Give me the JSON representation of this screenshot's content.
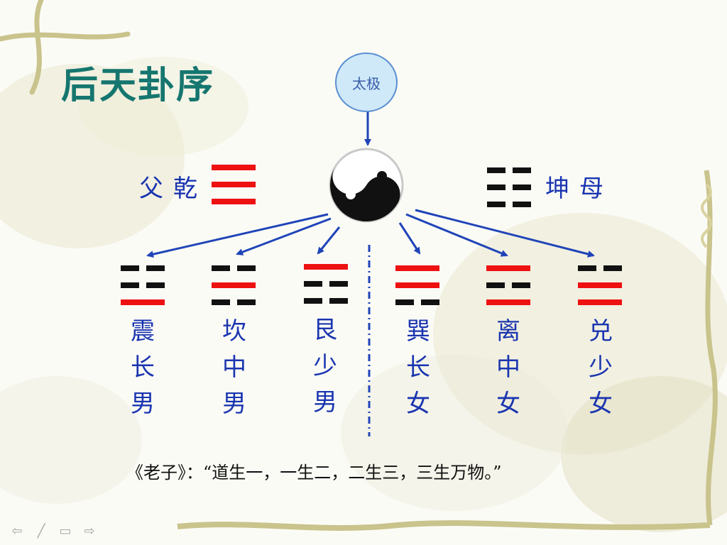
{
  "slide": {
    "title": "后天卦序",
    "taiji_label": "太极",
    "father": "父乾",
    "mother": "坤母",
    "quote": "《老子》：“道生一，一生二，二生三，三生万物。”"
  },
  "colors": {
    "yang_red": "#ee1111",
    "yin_black": "#111111",
    "label_blue": "#1a35b0",
    "arrow_blue": "#1f44b8",
    "title_teal": "#15766f",
    "circle_fill": "#cfe9f9"
  },
  "trigrams": [
    {
      "name": "震",
      "role1": "长",
      "role2": "男"
    },
    {
      "name": "坎",
      "role1": "中",
      "role2": "男"
    },
    {
      "name": "艮",
      "role1": "少",
      "role2": "男"
    },
    {
      "name": "巽",
      "role1": "长",
      "role2": "女"
    },
    {
      "name": "离",
      "role1": "中",
      "role2": "女"
    },
    {
      "name": "兑",
      "role1": "少",
      "role2": "女"
    }
  ],
  "icons": [
    "yin-yang-icon",
    "arrow-icon",
    "nav-prev-icon",
    "nav-pen-icon",
    "nav-menu-icon",
    "nav-next-icon"
  ]
}
